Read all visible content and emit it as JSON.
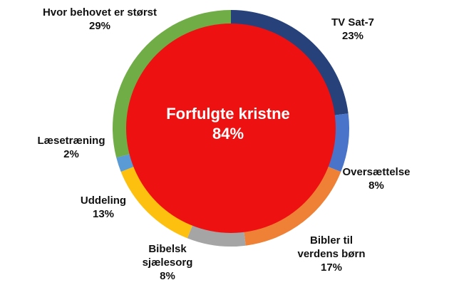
{
  "chart_data": {
    "type": "pie",
    "outer_ring": [
      {
        "label": "TV Sat-7",
        "value": 23,
        "value_label": "23%",
        "color": "#27417a"
      },
      {
        "label": "Oversættelse",
        "value": 8,
        "value_label": "8%",
        "color": "#4a74c9"
      },
      {
        "label": "Bibler til verdens børn",
        "value": 17,
        "value_label": "17%",
        "color": "#ef8136"
      },
      {
        "label": "Bibelsk sjælesorg",
        "value": 8,
        "value_label": "8%",
        "color": "#a5a5a5"
      },
      {
        "label": "Uddeling",
        "value": 13,
        "value_label": "13%",
        "color": "#fdc00f"
      },
      {
        "label": "Læsetræning",
        "value": 2,
        "value_label": "2%",
        "color": "#5b9bd5"
      },
      {
        "label": "Hvor behovet er størst",
        "value": 29,
        "value_label": "29%",
        "color": "#70ad47"
      }
    ],
    "inner_circle": {
      "label": "Forfulgte kristne",
      "value": 84,
      "value_label": "84%",
      "color": "#ee1111"
    },
    "legend": "none"
  }
}
